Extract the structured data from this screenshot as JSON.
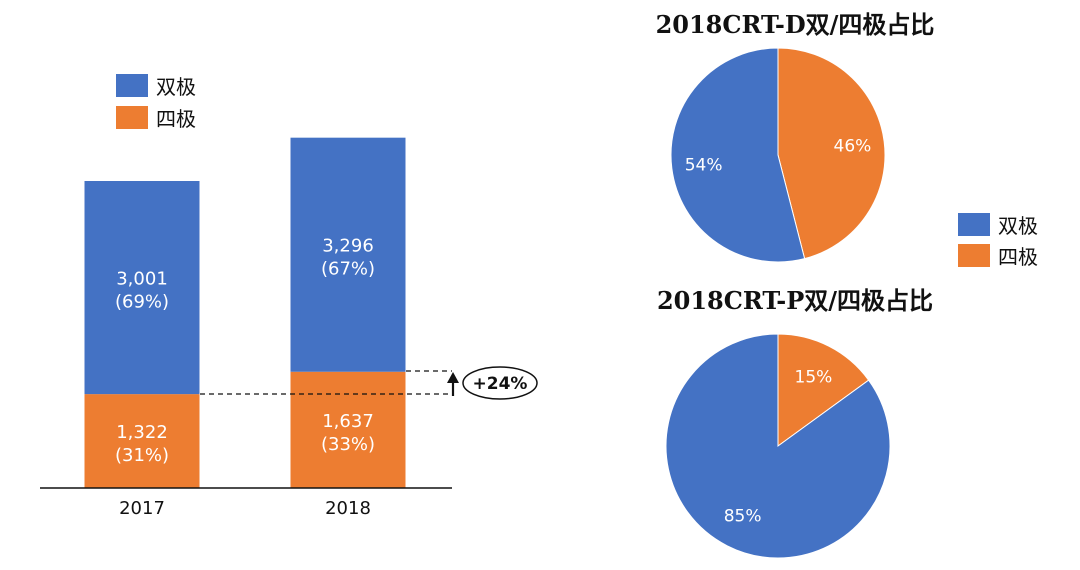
{
  "colors": {
    "bipolar": "#4472C4",
    "quadripolar": "#ED7D31"
  },
  "chart_data": [
    {
      "type": "bar",
      "stacked": true,
      "categories": [
        "2017",
        "2018"
      ],
      "series": [
        {
          "name": "四极",
          "values": [
            1322,
            1637
          ],
          "value_labels": [
            "1,322",
            "1,637"
          ],
          "pct_labels": [
            "(31%)",
            "(33%)"
          ],
          "color": "#ED7D31"
        },
        {
          "name": "双极",
          "values": [
            3001,
            3296
          ],
          "value_labels": [
            "3,001",
            "3,296"
          ],
          "pct_labels": [
            "(69%)",
            "(67%)"
          ],
          "color": "#4472C4"
        }
      ],
      "legend": {
        "items": [
          "双极",
          "四极"
        ],
        "position": "top-left"
      },
      "annotation": {
        "text": "+24%",
        "icon": "up-arrow-icon"
      },
      "ylim": [
        0,
        5000
      ],
      "grid": false
    },
    {
      "type": "pie",
      "title": "2018CRT-D双/四极占比",
      "labels": [
        "四极",
        "双极"
      ],
      "values": [
        46,
        54
      ],
      "value_labels": [
        "46%",
        "54%"
      ],
      "colors": [
        "#ED7D31",
        "#4472C4"
      ]
    },
    {
      "type": "pie",
      "title": "2018CRT-P双/四极占比",
      "labels": [
        "四极",
        "双极"
      ],
      "values": [
        15,
        85
      ],
      "value_labels": [
        "15%",
        "85%"
      ],
      "colors": [
        "#ED7D31",
        "#4472C4"
      ]
    }
  ],
  "pie_legend": {
    "items": [
      "双极",
      "四极"
    ],
    "position": "right"
  }
}
